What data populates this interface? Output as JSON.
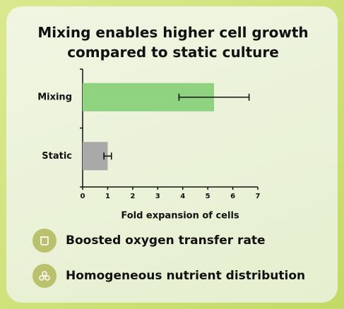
{
  "chart_data": {
    "type": "hbar",
    "title": "Mixing enables higher cell growth compared to static culture",
    "categories": [
      "Mixing",
      "Static"
    ],
    "values": [
      5.25,
      1.0
    ],
    "errors": [
      1.4,
      0.15
    ],
    "colors": [
      "#8fd27f",
      "#a9a9a9"
    ],
    "error_color": "#111111",
    "xlabel": "Fold expansion of cells",
    "xlim": [
      0,
      7
    ],
    "xticks": [
      0,
      1,
      2,
      3,
      4,
      5,
      6,
      7
    ],
    "grid": false
  },
  "features": [
    {
      "label": "Boosted oxygen transfer rate"
    },
    {
      "label": "Homogeneous nutrient distribution"
    }
  ]
}
